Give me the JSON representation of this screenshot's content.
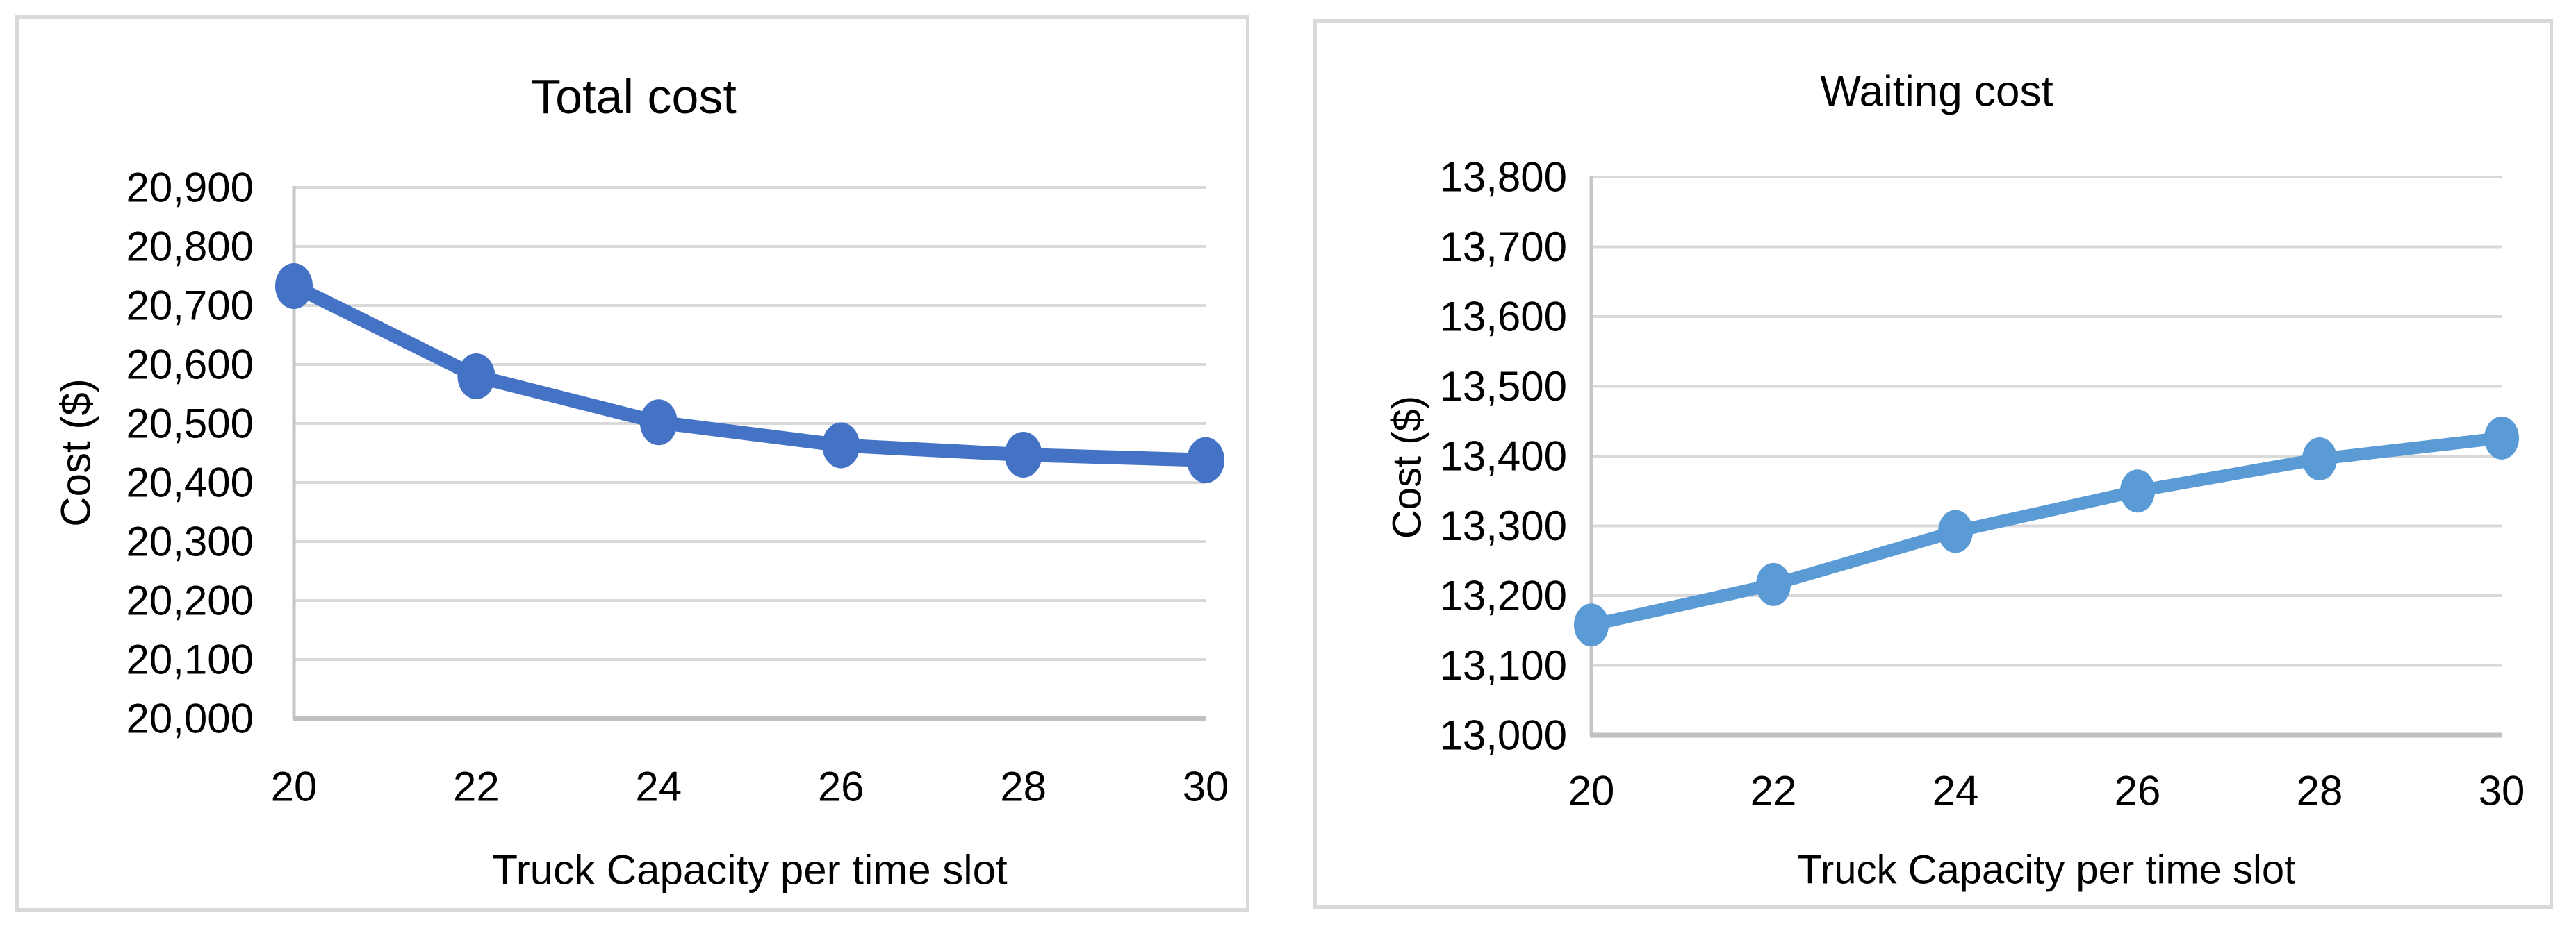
{
  "page": {
    "background": "#FFFFFF",
    "panel_border_color": "#D9D9D9",
    "gridline_color": "#D9D9D9",
    "axis_line_color": "#BFBFBF",
    "text_color": "#000000"
  },
  "chart_data": [
    {
      "type": "line",
      "title": "Total cost",
      "xlabel": "Truck Capacity per time slot",
      "ylabel": "Cost ($)",
      "x": [
        20,
        22,
        24,
        26,
        28,
        30
      ],
      "x_tick_labels": [
        "20",
        "22",
        "24",
        "26",
        "28",
        "30"
      ],
      "series": [
        {
          "name": "Total cost",
          "values": [
            20733,
            20580,
            20502,
            20463,
            20447,
            20438
          ],
          "color": "#4472C4"
        }
      ],
      "ylim": [
        20000,
        20900
      ],
      "y_step": 100,
      "y_tick_labels": [
        "20,000",
        "20,100",
        "20,200",
        "20,300",
        "20,400",
        "20,500",
        "20,600",
        "20,700",
        "20,800",
        "20,900"
      ],
      "grid": "horizontal",
      "legend": "none",
      "marker": "circle"
    },
    {
      "type": "line",
      "title": "Waiting cost",
      "xlabel": "Truck Capacity per time slot",
      "ylabel": "Cost ($)",
      "x": [
        20,
        22,
        24,
        26,
        28,
        30
      ],
      "x_tick_labels": [
        "20",
        "22",
        "24",
        "26",
        "28",
        "30"
      ],
      "series": [
        {
          "name": "Waiting cost",
          "values": [
            13158,
            13216,
            13292,
            13350,
            13396,
            13426
          ],
          "color": "#5B9BD5"
        }
      ],
      "ylim": [
        13000,
        13800
      ],
      "y_step": 100,
      "y_tick_labels": [
        "13,000",
        "13,100",
        "13,200",
        "13,300",
        "13,400",
        "13,500",
        "13,600",
        "13,700",
        "13,800"
      ],
      "grid": "horizontal",
      "legend": "none",
      "marker": "circle"
    }
  ]
}
